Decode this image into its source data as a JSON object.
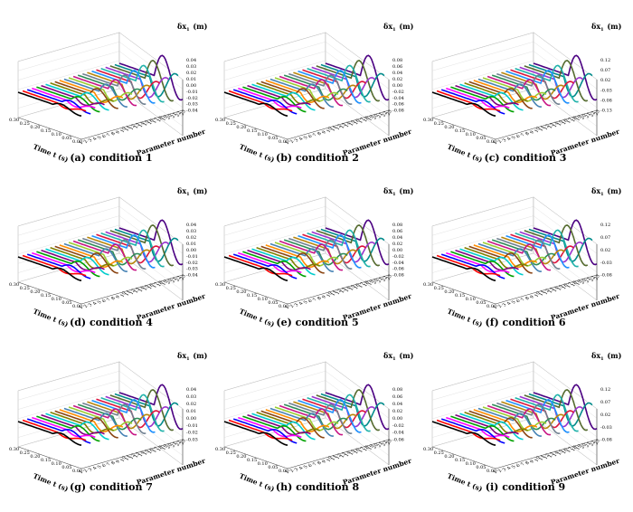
{
  "axis_labels": {
    "z": "δx",
    "z_sub": "1",
    "z_unit": "(m)",
    "time": "Time t (s)",
    "param": "Parameter number"
  },
  "time_ticks": [
    "0.30",
    "0.25",
    "0.20",
    "0.15",
    "0.10",
    "0.05",
    "0.00"
  ],
  "param_ticks": [
    "1",
    "2",
    "3",
    "4",
    "5",
    "6",
    "7",
    "8",
    "9",
    "10",
    "11",
    "12",
    "13",
    "14",
    "15",
    "16",
    "17",
    "18",
    "19",
    "20",
    "21",
    "22",
    "23"
  ],
  "series_colors": [
    "#000000",
    "#ff0000",
    "#0000ff",
    "#ff00ff",
    "#00a000",
    "#800080",
    "#00cccc",
    "#808000",
    "#8b4513",
    "#ff8c00",
    "#4682b4",
    "#9acd32",
    "#c71585",
    "#2e8b57",
    "#708090",
    "#b8860b",
    "#1e90ff",
    "#dc143c",
    "#20b2aa",
    "#9932cc",
    "#556b2f",
    "#008b8b",
    "#4b0082"
  ],
  "panels": [
    {
      "label": "(a)",
      "condition": "condition 1",
      "z_ticks": [
        "0.04",
        "0.03",
        "0.02",
        "0.01",
        "0.00",
        "-0.01",
        "-0.02",
        "-0.03",
        "-0.04"
      ]
    },
    {
      "label": "(b)",
      "condition": "condition 2",
      "z_ticks": [
        "0.08",
        "0.06",
        "0.04",
        "0.02",
        "0.00",
        "-0.02",
        "-0.04",
        "-0.06",
        "-0.08"
      ]
    },
    {
      "label": "(c)",
      "condition": "condition 3",
      "z_ticks": [
        "0.12",
        "0.07",
        "0.02",
        "-0.03",
        "-0.08",
        "-0.13"
      ]
    },
    {
      "label": "(d)",
      "condition": "condition 4",
      "z_ticks": [
        "0.04",
        "0.03",
        "0.02",
        "0.01",
        "0.00",
        "-0.01",
        "-0.02",
        "-0.03",
        "-0.04"
      ]
    },
    {
      "label": "(e)",
      "condition": "condition 5",
      "z_ticks": [
        "0.08",
        "0.06",
        "0.04",
        "0.02",
        "0.00",
        "-0.02",
        "-0.04",
        "-0.06",
        "-0.08"
      ]
    },
    {
      "label": "(f)",
      "condition": "condition 6",
      "z_ticks": [
        "0.12",
        "0.07",
        "0.02",
        "-0.03",
        "-0.08"
      ]
    },
    {
      "label": "(g)",
      "condition": "condition 7",
      "z_ticks": [
        "0.04",
        "0.03",
        "0.02",
        "0.01",
        "0.00",
        "-0.01",
        "-0.02",
        "-0.03"
      ]
    },
    {
      "label": "(h)",
      "condition": "condition 8",
      "z_ticks": [
        "0.08",
        "0.06",
        "0.04",
        "0.02",
        "0.00",
        "-0.02",
        "-0.04",
        "-0.06"
      ]
    },
    {
      "label": "(i)",
      "condition": "condition 9",
      "z_ticks": [
        "0.12",
        "0.07",
        "0.02",
        "-0.03",
        "-0.08"
      ]
    }
  ],
  "chart_data": {
    "type": "line",
    "x_label": "Parameter number",
    "y_label": "Time t (s)",
    "z_label": "δx1 (m)",
    "x_categories": [
      "1",
      "2",
      "3",
      "4",
      "5",
      "6",
      "7",
      "8",
      "9",
      "10",
      "11",
      "12",
      "13",
      "14",
      "15",
      "16",
      "17",
      "18",
      "19",
      "20",
      "21",
      "22",
      "23"
    ],
    "y_range": [
      0.0,
      0.3
    ],
    "grid": true
  }
}
